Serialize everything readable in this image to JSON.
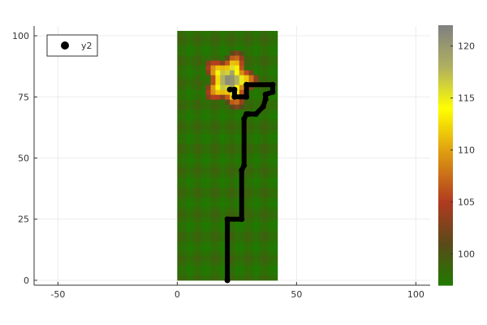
{
  "chart_data": {
    "type": "heatmap",
    "title": "",
    "xlabel": "",
    "ylabel": "",
    "xlim": [
      -60,
      106
    ],
    "ylim": [
      -2,
      104
    ],
    "xticks": [
      -50,
      0,
      50,
      100
    ],
    "yticks": [
      0,
      25,
      50,
      75,
      100
    ],
    "grid": true,
    "legend_position": "top-left",
    "heatmap": {
      "x_range": [
        0,
        41
      ],
      "y_range": [
        0,
        102
      ],
      "base_value": 98,
      "peak": {
        "x": 22,
        "y": 82,
        "value": 122
      },
      "clim": [
        97,
        122
      ],
      "colorbar_ticks": [
        100,
        105,
        110,
        115,
        120
      ],
      "colormap": [
        {
          "value": 97,
          "color": "#1f7a00"
        },
        {
          "value": 101,
          "color": "#5a4a1a"
        },
        {
          "value": 105,
          "color": "#b03a20"
        },
        {
          "value": 110,
          "color": "#e0a010"
        },
        {
          "value": 114,
          "color": "#ffff00"
        },
        {
          "value": 118,
          "color": "#b0b060"
        },
        {
          "value": 122,
          "color": "#808080"
        }
      ]
    },
    "series": [
      {
        "name": "y2",
        "type": "line",
        "color": "#000000",
        "x": [
          21,
          21,
          27,
          27,
          28,
          28,
          29,
          30,
          33,
          36,
          37,
          37,
          40,
          40,
          29,
          29,
          24,
          24,
          22
        ],
        "y": [
          0,
          25,
          25,
          45,
          47,
          66,
          68,
          68,
          68,
          71,
          74,
          76,
          77,
          80,
          80,
          75,
          75,
          78,
          78
        ]
      }
    ]
  }
}
